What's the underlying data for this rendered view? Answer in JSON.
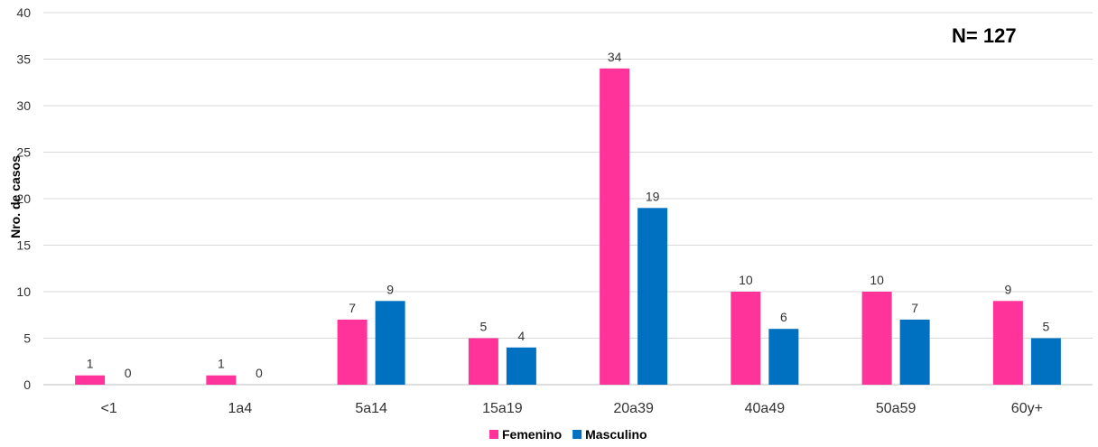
{
  "chart_data": {
    "type": "bar",
    "categories": [
      "<1",
      "1a4",
      "5a14",
      "15a19",
      "20a39",
      "40a49",
      "50a59",
      "60y+"
    ],
    "series": [
      {
        "name": "Femenino",
        "values": [
          1,
          1,
          7,
          5,
          34,
          10,
          10,
          9
        ],
        "color": "#ff3399"
      },
      {
        "name": "Masculino",
        "values": [
          0,
          0,
          9,
          4,
          19,
          6,
          7,
          5
        ],
        "color": "#0070c0"
      }
    ],
    "ylabel": "Nro. de casos",
    "xlabel": "",
    "ylim": [
      0,
      40
    ],
    "yticks": [
      0,
      5,
      10,
      15,
      20,
      25,
      30,
      35,
      40
    ],
    "annotation": "N= 127",
    "grid": true,
    "legend_position": "bottom"
  }
}
